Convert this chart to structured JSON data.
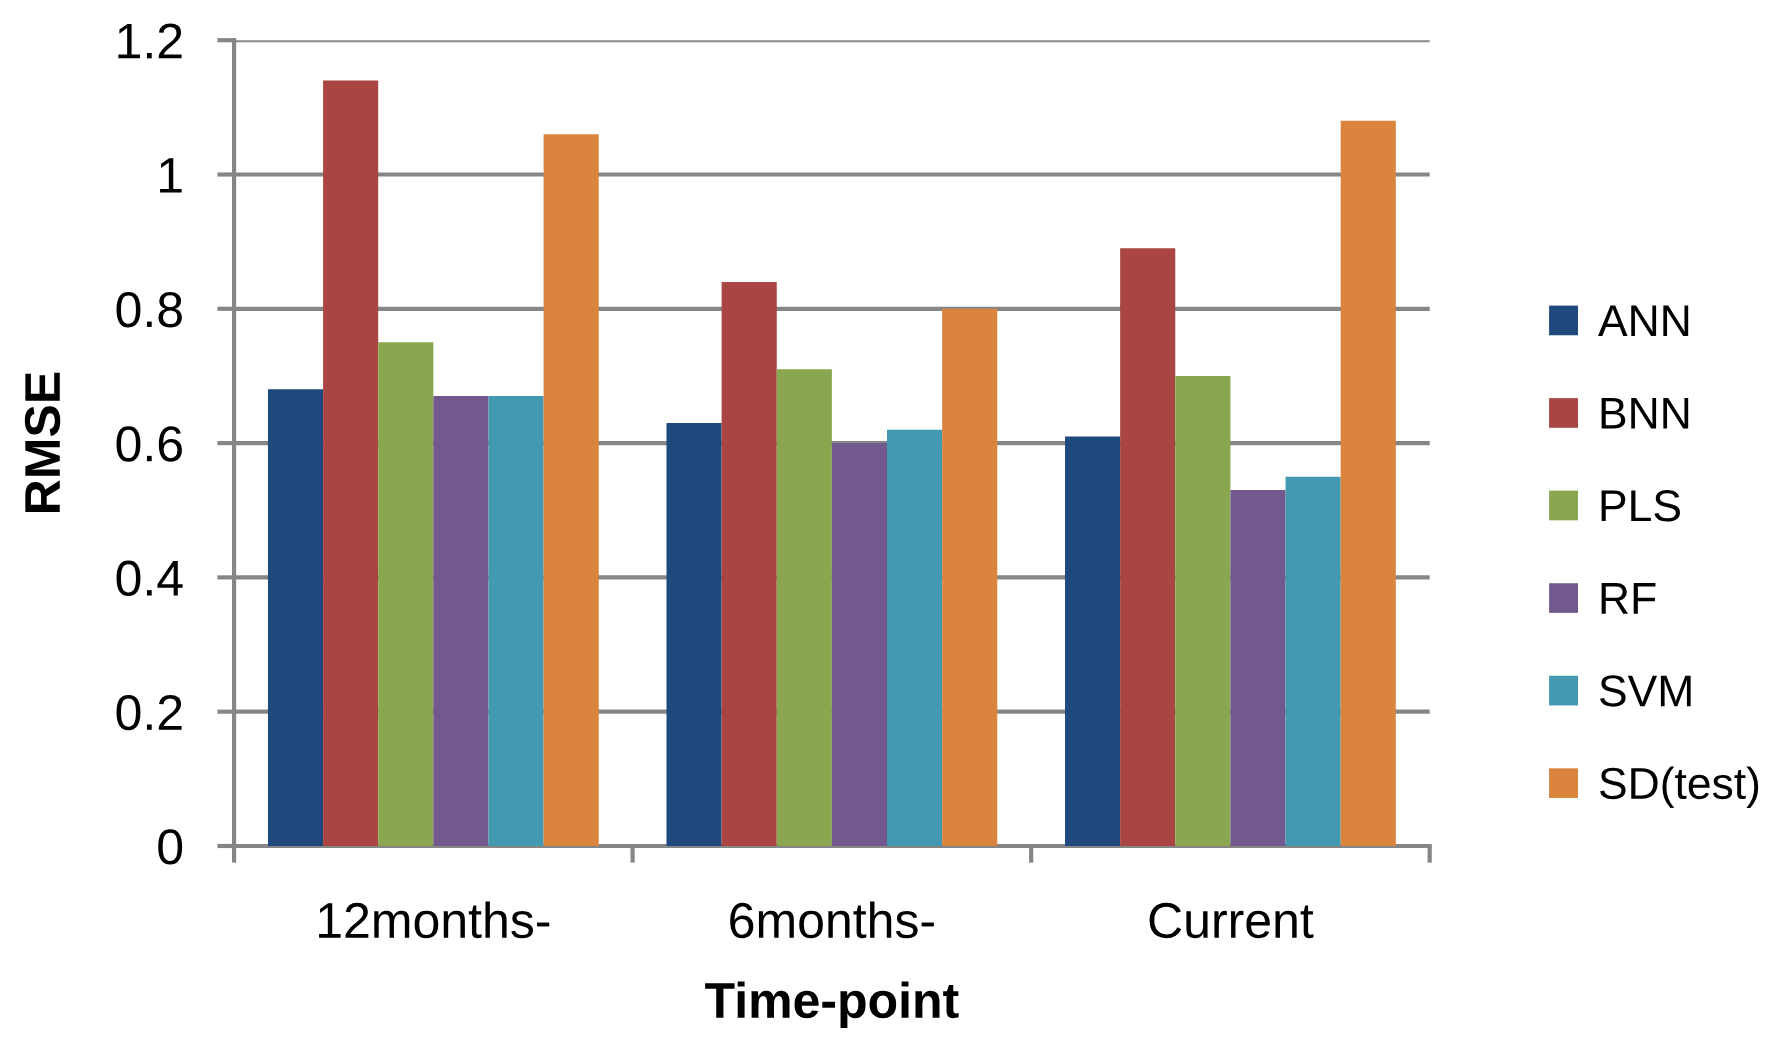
{
  "chart_data": {
    "type": "bar",
    "xlabel": "Time-point",
    "ylabel": "RMSE",
    "categories": [
      "12months-",
      "6months-",
      "Current"
    ],
    "series": [
      {
        "name": "ANN",
        "color": "#1f497d",
        "values": [
          0.68,
          0.63,
          0.61
        ]
      },
      {
        "name": "BNN",
        "color": "#a94543",
        "values": [
          1.14,
          0.84,
          0.89
        ]
      },
      {
        "name": "PLS",
        "color": "#8aa64f",
        "values": [
          0.75,
          0.71,
          0.7
        ]
      },
      {
        "name": "RF",
        "color": "#71598e",
        "values": [
          0.67,
          0.6,
          0.53
        ]
      },
      {
        "name": "SVM",
        "color": "#4399b0",
        "values": [
          0.67,
          0.62,
          0.55
        ]
      },
      {
        "name": "SD(test)",
        "color": "#db843d",
        "values": [
          1.06,
          0.8,
          1.08
        ]
      }
    ],
    "ylim": [
      0,
      1.2
    ],
    "yticks": [
      0,
      0.2,
      0.4,
      0.6,
      0.8,
      1,
      1.2
    ],
    "grid": "y",
    "legend": "right"
  }
}
